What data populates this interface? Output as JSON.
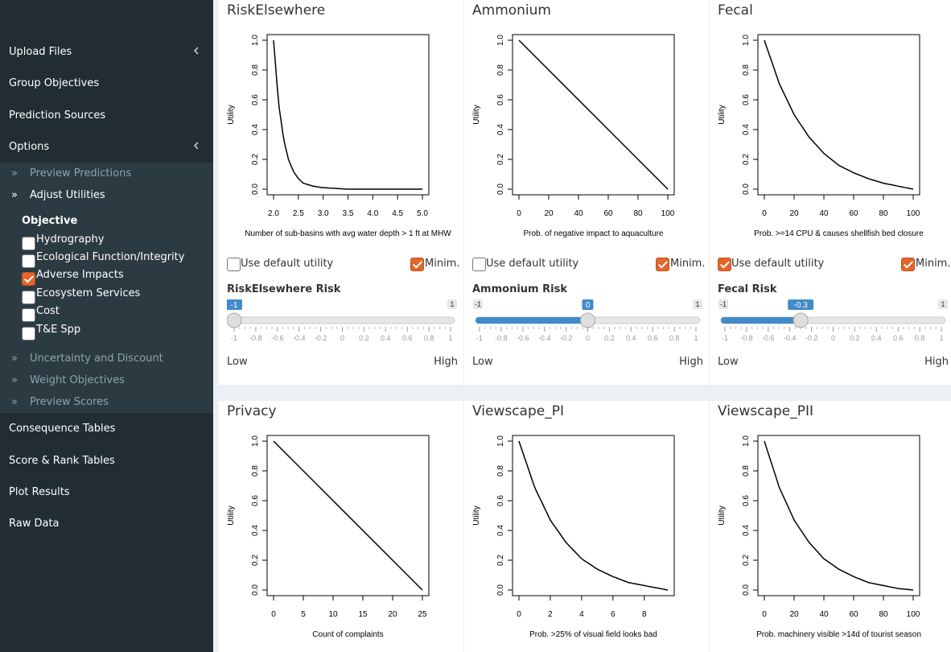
{
  "sidebar": {
    "items": [
      {
        "label": "Upload Files",
        "has_chevron": true
      },
      {
        "label": "Group Objectives",
        "has_chevron": false
      },
      {
        "label": "Prediction Sources",
        "has_chevron": false
      },
      {
        "label": "Options",
        "has_chevron": true
      }
    ],
    "sub_items": [
      {
        "label": "Preview Predictions",
        "active": false
      },
      {
        "label": "Adjust Utilities",
        "active": true
      }
    ],
    "objective_title": "Objective",
    "objectives": [
      {
        "label": "Hydrography",
        "checked": false
      },
      {
        "label": "Ecological Function/Integrity",
        "checked": false
      },
      {
        "label": "Adverse Impacts",
        "checked": true
      },
      {
        "label": "Ecosystem Services",
        "checked": false
      },
      {
        "label": "Cost",
        "checked": false
      },
      {
        "label": "T&E Spp",
        "checked": false
      }
    ],
    "sub_items_after": [
      {
        "label": "Uncertainty and Discount"
      },
      {
        "label": "Weight Objectives"
      },
      {
        "label": "Preview Scores"
      }
    ],
    "bottom_items": [
      {
        "label": "Consequence Tables"
      },
      {
        "label": "Score & Rank Tables"
      },
      {
        "label": "Plot Results"
      },
      {
        "label": "Raw Data"
      }
    ]
  },
  "labels": {
    "use_default": "Use default utility",
    "minimize": "Minim.",
    "low": "Low",
    "high": "High"
  },
  "panels": [
    {
      "title": "RiskElsewhere",
      "use_default": false,
      "minimize": true,
      "risk_title": "RiskElsewhere Risk",
      "slider": {
        "min": -1,
        "max": 1,
        "value": -1,
        "value_label": "-1",
        "min_label": "-1",
        "max_label": "1"
      },
      "chart_data": {
        "type": "line",
        "curve": "exponential",
        "x_range": [
          2,
          5
        ],
        "y_range": [
          0,
          1
        ],
        "xticks": [
          "2.0",
          "2.5",
          "3.0",
          "3.5",
          "4.0",
          "4.5",
          "5.0"
        ],
        "yticks": [
          "0.0",
          "0.2",
          "0.4",
          "0.6",
          "0.8",
          "1.0"
        ],
        "xlabel": "Number of sub-basins with avg water depth > 1 ft at MHW",
        "ylabel": "Utility",
        "x": [
          2.0,
          2.1,
          2.2,
          2.3,
          2.4,
          2.5,
          2.6,
          2.8,
          3.0,
          3.5,
          4.0,
          5.0
        ],
        "y": [
          1.0,
          0.58,
          0.34,
          0.2,
          0.12,
          0.07,
          0.04,
          0.02,
          0.01,
          0.0,
          0.0,
          0.0
        ]
      }
    },
    {
      "title": "Ammonium",
      "use_default": false,
      "minimize": true,
      "risk_title": "Ammonium Risk",
      "slider": {
        "min": -1,
        "max": 1,
        "value": 0,
        "value_label": "0",
        "min_label": "-1",
        "max_label": "1"
      },
      "chart_data": {
        "type": "line",
        "curve": "linear",
        "x_range": [
          0,
          100
        ],
        "y_range": [
          0,
          1
        ],
        "xticks": [
          "0",
          "20",
          "40",
          "60",
          "80",
          "100"
        ],
        "yticks": [
          "0.0",
          "0.2",
          "0.4",
          "0.6",
          "0.8",
          "1.0"
        ],
        "xlabel": "Prob. of negative impact to aquaculture",
        "ylabel": "Utility",
        "x": [
          0,
          100
        ],
        "y": [
          1.0,
          0.0
        ]
      }
    },
    {
      "title": "Fecal",
      "use_default": true,
      "minimize": true,
      "risk_title": "Fecal Risk",
      "slider": {
        "min": -1,
        "max": 1,
        "value": -0.3,
        "value_label": "-0.3",
        "min_label": "-1",
        "max_label": "1"
      },
      "chart_data": {
        "type": "line",
        "curve": "exponential",
        "x_range": [
          0,
          100
        ],
        "y_range": [
          0,
          1
        ],
        "xticks": [
          "0",
          "20",
          "40",
          "60",
          "80",
          "100"
        ],
        "yticks": [
          "0.0",
          "0.2",
          "0.4",
          "0.6",
          "0.8",
          "1.0"
        ],
        "xlabel": "Prob. >=14 CPU & causes shellfish bed closure",
        "ylabel": "Utility",
        "x": [
          0,
          10,
          20,
          30,
          40,
          50,
          60,
          70,
          80,
          90,
          100
        ],
        "y": [
          1.0,
          0.71,
          0.5,
          0.35,
          0.24,
          0.16,
          0.11,
          0.07,
          0.04,
          0.02,
          0.0
        ]
      }
    },
    {
      "title": "Privacy",
      "chart_data": {
        "type": "line",
        "curve": "linear",
        "x_range": [
          0,
          25
        ],
        "y_range": [
          0,
          1
        ],
        "xticks": [
          "0",
          "5",
          "10",
          "15",
          "20",
          "25"
        ],
        "yticks": [
          "0.0",
          "0.2",
          "0.4",
          "0.6",
          "0.8",
          "1.0"
        ],
        "xlabel": "Count of complaints",
        "ylabel": "Utility",
        "x": [
          0,
          25
        ],
        "y": [
          1.0,
          0.0
        ]
      }
    },
    {
      "title": "Viewscape_PI",
      "chart_data": {
        "type": "line",
        "curve": "exponential",
        "x_range": [
          0,
          9.5
        ],
        "y_range": [
          0,
          1
        ],
        "xticks": [
          "0",
          "2",
          "4",
          "6",
          "8"
        ],
        "yticks": [
          "0.0",
          "0.2",
          "0.4",
          "0.6",
          "0.8",
          "1.0"
        ],
        "xlabel": "Prob. >25% of visual field looks bad",
        "ylabel": "Utility",
        "x": [
          0,
          1,
          2,
          3,
          4,
          5,
          6,
          7,
          8,
          9.5
        ],
        "y": [
          1.0,
          0.69,
          0.47,
          0.32,
          0.21,
          0.14,
          0.09,
          0.05,
          0.03,
          0.0
        ]
      }
    },
    {
      "title": "Viewscape_PII",
      "chart_data": {
        "type": "line",
        "curve": "exponential",
        "x_range": [
          0,
          100
        ],
        "y_range": [
          0,
          1
        ],
        "xticks": [
          "0",
          "20",
          "40",
          "60",
          "80",
          "100"
        ],
        "yticks": [
          "0.0",
          "0.2",
          "0.4",
          "0.6",
          "0.8",
          "1.0"
        ],
        "xlabel": "Prob. machinery visible >14d of tourist season",
        "ylabel": "Utility",
        "x": [
          0,
          10,
          20,
          30,
          40,
          50,
          60,
          70,
          80,
          90,
          100
        ],
        "y": [
          1.0,
          0.69,
          0.47,
          0.32,
          0.21,
          0.14,
          0.09,
          0.05,
          0.03,
          0.01,
          0.0
        ]
      }
    }
  ]
}
